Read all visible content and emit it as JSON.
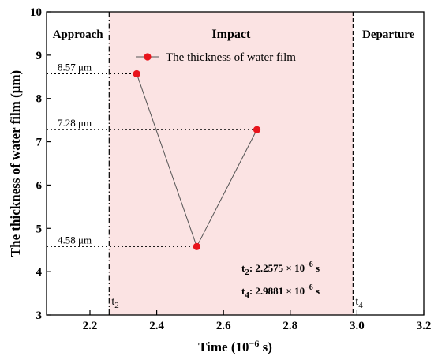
{
  "chart_data": {
    "type": "scatter",
    "xlabel": "Time (10⁻⁶ s)",
    "ylabel": "The thickness of water film (μm)",
    "xlim": [
      2.07,
      3.2
    ],
    "ylim": [
      3,
      10
    ],
    "xticks": [
      2.2,
      2.4,
      2.6,
      2.8,
      3.0,
      3.2
    ],
    "xtick_labels": [
      "2.2",
      "2.4",
      "2.6",
      "2.8",
      "3.0",
      "3.2"
    ],
    "yticks": [
      3,
      4,
      5,
      6,
      7,
      8,
      9,
      10
    ],
    "ytick_labels": [
      "3",
      "4",
      "5",
      "6",
      "7",
      "8",
      "9",
      "10"
    ],
    "grid": false,
    "legend_position": "top-right",
    "series": [
      {
        "name": "The thickness of water film",
        "color": "#e8141c",
        "line_color": "#555555",
        "x": [
          2.34,
          2.52,
          2.7
        ],
        "y": [
          8.57,
          4.58,
          7.28
        ]
      }
    ],
    "point_annotations": [
      "8.57 μm",
      "4.58 μm",
      "7.28 μm"
    ],
    "regions": [
      {
        "label": "Approach",
        "from": 2.07,
        "to": 2.2575,
        "fill": null
      },
      {
        "label": "Impact",
        "from": 2.2575,
        "to": 2.9881,
        "fill": "#fbe3e3"
      },
      {
        "label": "Departure",
        "from": 2.9881,
        "to": 3.2,
        "fill": null
      }
    ],
    "markers": [
      {
        "label": "t",
        "sub": "2",
        "x": 2.2575
      },
      {
        "label": "t",
        "sub": "4",
        "x": 2.9881
      }
    ],
    "params": [
      {
        "name": "t",
        "sub": "2",
        "value": ": 2.2575 × 10",
        "exp": "−6",
        "unit": " s"
      },
      {
        "name": "t",
        "sub": "4",
        "value": ": 2.9881 × 10",
        "exp": "−6",
        "unit": " s"
      }
    ]
  }
}
